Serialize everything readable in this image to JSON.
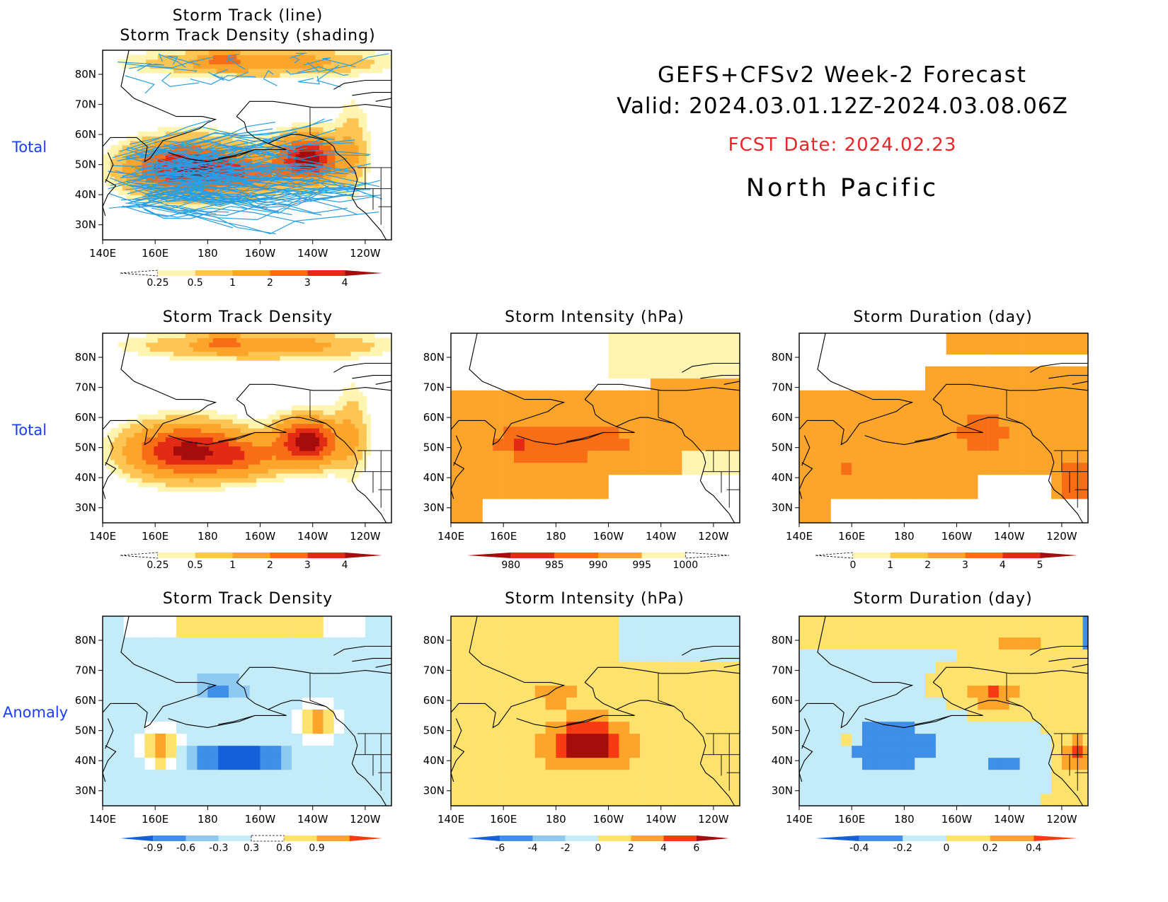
{
  "header": {
    "line1": "GEFS+CFSv2 Week-2 Forecast",
    "line2": "Valid: 2024.03.01.12Z-2024.03.08.06Z",
    "fcst_date": "FCST Date: 2024.02.23",
    "region": "North Pacific"
  },
  "row_labels": [
    "Total",
    "Total",
    "Anomaly"
  ],
  "axes": {
    "lon_ticks": [
      "140E",
      "160E",
      "180",
      "160W",
      "140W",
      "120W"
    ],
    "lat_ticks": [
      "80N",
      "70N",
      "60N",
      "50N",
      "40N",
      "30N"
    ]
  },
  "panels": [
    {
      "id": "track",
      "title_line1": "Storm Track (line)",
      "title_line2": "Storm Track Density (shading)"
    },
    {
      "id": "density_total",
      "title": "Storm Track Density"
    },
    {
      "id": "intensity_total",
      "title": "Storm Intensity (hPa)"
    },
    {
      "id": "duration_total",
      "title": "Storm Duration (day)"
    },
    {
      "id": "density_anom",
      "title": "Storm Track Density"
    },
    {
      "id": "intensity_anom",
      "title": "Storm Intensity (hPa)"
    },
    {
      "id": "duration_anom",
      "title": "Storm Duration (day)"
    }
  ],
  "colorbars": {
    "density": {
      "labels": [
        "0.25",
        "0.5",
        "1",
        "2",
        "3",
        "4"
      ],
      "colors": [
        "#ffffff",
        "#fff4b0",
        "#fdc553",
        "#fca52a",
        "#f86e16",
        "#e32a14",
        "#a50c0c"
      ]
    },
    "intensity": {
      "labels": [
        "980",
        "985",
        "990",
        "995",
        "1000"
      ],
      "colors": [
        "#a50c0c",
        "#e32a14",
        "#f86e16",
        "#fca52a",
        "#fff4b0",
        "#ffffff"
      ]
    },
    "duration": {
      "labels": [
        "0",
        "1",
        "2",
        "3",
        "4",
        "5"
      ],
      "colors": [
        "#ffffff",
        "#fff4b0",
        "#fdc553",
        "#fca52a",
        "#f86e16",
        "#e32a14",
        "#a50c0c"
      ]
    },
    "density_anom": {
      "labels": [
        "-0.9",
        "-0.6",
        "-0.3",
        "0.3",
        "0.6",
        "0.9"
      ],
      "colors": [
        "#1560d8",
        "#3f8ee8",
        "#8ec9f2",
        "#c4ecf8",
        "#ffffff",
        "#fde26e",
        "#fca52a",
        "#f83a14"
      ]
    },
    "intensity_anom": {
      "labels": [
        "-6",
        "-4",
        "-2",
        "0",
        "2",
        "4",
        "6"
      ],
      "colors": [
        "#1560d8",
        "#3f8ee8",
        "#8ec9f2",
        "#c4ecf8",
        "#fde26e",
        "#fca52a",
        "#f83a14",
        "#a50c0c"
      ]
    },
    "duration_anom": {
      "labels": [
        "-0.4",
        "-0.2",
        "0",
        "0.2",
        "0.4"
      ],
      "colors": [
        "#1560d8",
        "#3f8ee8",
        "#c4ecf8",
        "#fde26e",
        "#fca52a",
        "#f83a14"
      ]
    }
  },
  "colors": {
    "track_line": "#2a9ee0",
    "row_label": "#1a3dff",
    "fcst_date": "#e8262a",
    "coast": "#000000"
  }
}
